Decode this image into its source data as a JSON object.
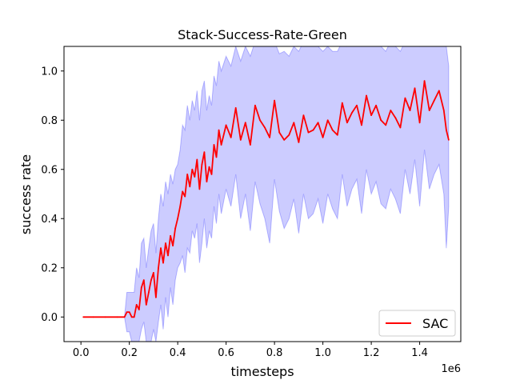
{
  "chart_data": {
    "type": "line",
    "title": "Stack-Success-Rate-Green",
    "xlabel": "timesteps",
    "ylabel": "success rate",
    "x_offset_label": "1e6",
    "xlim": [
      -0.07,
      1.57
    ],
    "ylim": [
      -0.1,
      1.1
    ],
    "xticks": [
      0.0,
      0.2,
      0.4,
      0.6,
      0.8,
      1.0,
      1.2,
      1.4
    ],
    "xtick_labels": [
      "0.0",
      "0.2",
      "0.4",
      "0.6",
      "0.8",
      "1.0",
      "1.2",
      "1.4"
    ],
    "yticks": [
      0.0,
      0.2,
      0.4,
      0.6,
      0.8,
      1.0
    ],
    "ytick_labels": [
      "0.0",
      "0.2",
      "0.4",
      "0.6",
      "0.8",
      "1.0"
    ],
    "legend_position": "lower-right",
    "grid": false,
    "series": [
      {
        "name": "SAC",
        "color": "#ff0000",
        "band_color": "#0000ff",
        "band_opacity": 0.2,
        "x": [
          0.01,
          0.05,
          0.1,
          0.15,
          0.18,
          0.19,
          0.2,
          0.21,
          0.22,
          0.23,
          0.24,
          0.25,
          0.26,
          0.27,
          0.28,
          0.29,
          0.3,
          0.31,
          0.32,
          0.33,
          0.34,
          0.35,
          0.36,
          0.37,
          0.38,
          0.39,
          0.4,
          0.41,
          0.42,
          0.43,
          0.44,
          0.45,
          0.46,
          0.47,
          0.48,
          0.49,
          0.5,
          0.51,
          0.52,
          0.53,
          0.54,
          0.55,
          0.56,
          0.57,
          0.58,
          0.6,
          0.62,
          0.64,
          0.66,
          0.68,
          0.7,
          0.72,
          0.74,
          0.76,
          0.78,
          0.8,
          0.82,
          0.84,
          0.86,
          0.88,
          0.9,
          0.92,
          0.94,
          0.96,
          0.98,
          1.0,
          1.02,
          1.04,
          1.06,
          1.08,
          1.1,
          1.12,
          1.14,
          1.16,
          1.18,
          1.2,
          1.22,
          1.24,
          1.26,
          1.28,
          1.3,
          1.32,
          1.34,
          1.36,
          1.38,
          1.4,
          1.42,
          1.44,
          1.46,
          1.48,
          1.5,
          1.51,
          1.52
        ],
        "y": [
          0.0,
          0.0,
          0.0,
          0.0,
          0.0,
          0.02,
          0.02,
          0.0,
          0.0,
          0.05,
          0.03,
          0.12,
          0.15,
          0.05,
          0.1,
          0.15,
          0.18,
          0.08,
          0.2,
          0.28,
          0.22,
          0.3,
          0.25,
          0.33,
          0.29,
          0.36,
          0.4,
          0.45,
          0.51,
          0.49,
          0.58,
          0.53,
          0.6,
          0.57,
          0.64,
          0.52,
          0.62,
          0.67,
          0.55,
          0.61,
          0.58,
          0.7,
          0.65,
          0.76,
          0.7,
          0.78,
          0.73,
          0.85,
          0.72,
          0.79,
          0.7,
          0.86,
          0.8,
          0.77,
          0.73,
          0.88,
          0.75,
          0.72,
          0.74,
          0.79,
          0.71,
          0.82,
          0.75,
          0.76,
          0.79,
          0.73,
          0.8,
          0.76,
          0.74,
          0.87,
          0.79,
          0.83,
          0.86,
          0.78,
          0.9,
          0.82,
          0.86,
          0.8,
          0.78,
          0.84,
          0.81,
          0.77,
          0.89,
          0.84,
          0.93,
          0.79,
          0.96,
          0.84,
          0.88,
          0.92,
          0.84,
          0.76,
          0.72
        ],
        "lower": [
          0.0,
          0.0,
          0.0,
          0.0,
          0.0,
          -0.06,
          -0.06,
          -0.1,
          -0.1,
          -0.1,
          -0.1,
          -0.05,
          -0.02,
          -0.1,
          -0.1,
          -0.1,
          -0.05,
          -0.1,
          -0.02,
          0.05,
          -0.05,
          0.08,
          0.0,
          0.12,
          0.05,
          0.15,
          0.2,
          0.22,
          0.25,
          0.18,
          0.28,
          0.26,
          0.35,
          0.32,
          0.38,
          0.22,
          0.3,
          0.4,
          0.28,
          0.35,
          0.32,
          0.45,
          0.38,
          0.5,
          0.42,
          0.52,
          0.45,
          0.58,
          0.4,
          0.5,
          0.35,
          0.55,
          0.46,
          0.4,
          0.3,
          0.56,
          0.43,
          0.36,
          0.4,
          0.48,
          0.34,
          0.5,
          0.4,
          0.42,
          0.48,
          0.38,
          0.5,
          0.44,
          0.4,
          0.58,
          0.45,
          0.52,
          0.56,
          0.42,
          0.6,
          0.5,
          0.55,
          0.46,
          0.44,
          0.52,
          0.48,
          0.42,
          0.6,
          0.5,
          0.64,
          0.45,
          0.68,
          0.52,
          0.58,
          0.62,
          0.5,
          0.28,
          0.45
        ],
        "upper": [
          0.0,
          0.0,
          0.0,
          0.0,
          0.0,
          0.1,
          0.1,
          0.1,
          0.1,
          0.2,
          0.16,
          0.3,
          0.32,
          0.2,
          0.28,
          0.35,
          0.38,
          0.26,
          0.4,
          0.5,
          0.45,
          0.55,
          0.5,
          0.58,
          0.54,
          0.6,
          0.62,
          0.68,
          0.78,
          0.76,
          0.86,
          0.8,
          0.88,
          0.84,
          0.92,
          0.8,
          0.92,
          0.96,
          0.84,
          0.9,
          0.86,
          0.98,
          0.94,
          1.04,
          1.0,
          1.06,
          1.02,
          1.1,
          1.04,
          1.1,
          1.06,
          1.12,
          1.12,
          1.1,
          1.1,
          1.12,
          1.07,
          1.08,
          1.06,
          1.1,
          1.08,
          1.12,
          1.1,
          1.1,
          1.1,
          1.08,
          1.1,
          1.08,
          1.08,
          1.12,
          1.1,
          1.12,
          1.12,
          1.1,
          1.12,
          1.12,
          1.12,
          1.1,
          1.08,
          1.12,
          1.1,
          1.08,
          1.12,
          1.12,
          1.12,
          1.1,
          1.12,
          1.12,
          1.12,
          1.12,
          1.12,
          1.1,
          1.02
        ]
      }
    ]
  }
}
